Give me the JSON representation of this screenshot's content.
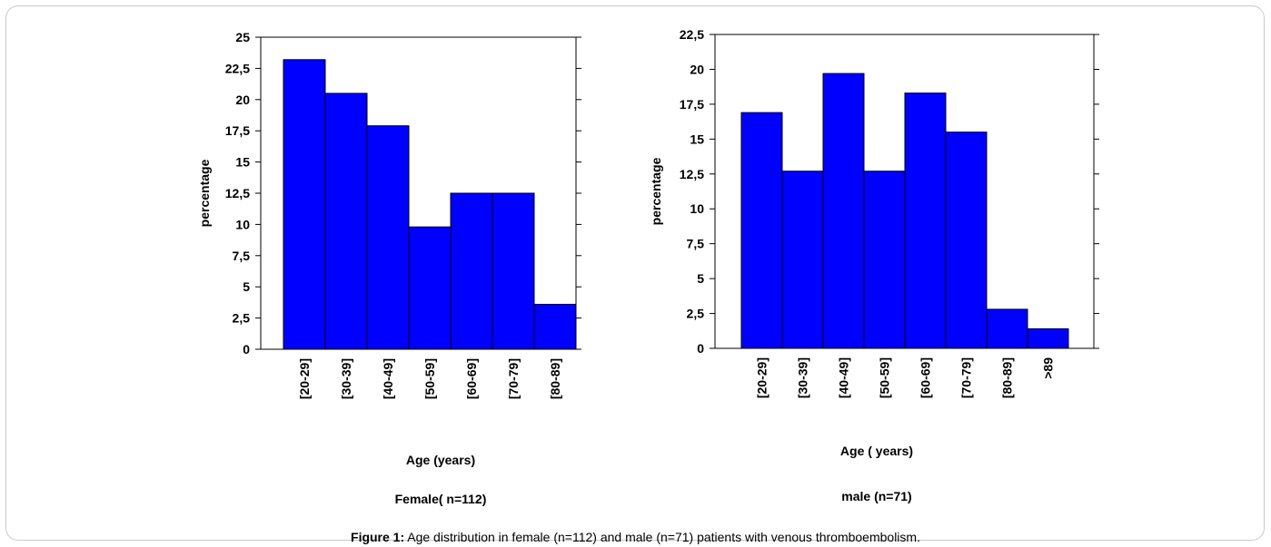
{
  "chart_data": [
    {
      "type": "bar",
      "categories": [
        "[20-29]",
        "[30-39]",
        "[40-49]",
        "[50-59]",
        "[60-69]",
        "[70-79]",
        "[80-89]"
      ],
      "values": [
        23.2,
        20.5,
        17.9,
        9.8,
        12.5,
        12.5,
        3.6
      ],
      "ylabel": "percentage",
      "xlabel": "Age (years)",
      "subtitle": "Female( n=112)",
      "ylim": [
        0,
        25
      ],
      "yticks": [
        "0",
        "2,5",
        "5",
        "7,5",
        "10",
        "12,5",
        "15",
        "17,5",
        "20",
        "22,5",
        "25"
      ],
      "bar_color": "#0000ff"
    },
    {
      "type": "bar",
      "categories": [
        "[20-29]",
        "[30-39]",
        "[40-49]",
        "[50-59]",
        "[60-69]",
        "[70-79]",
        "[80-89]",
        ">89"
      ],
      "values": [
        16.9,
        12.7,
        19.7,
        12.7,
        18.3,
        15.5,
        2.8,
        1.4
      ],
      "ylabel": "percentage",
      "xlabel": "Age ( years)",
      "subtitle": "male (n=71)",
      "ylim": [
        0,
        22.5
      ],
      "yticks": [
        "0",
        "2,5",
        "5",
        "7,5",
        "10",
        "12,5",
        "15",
        "17,5",
        "20",
        "22,5"
      ],
      "bar_color": "#0000ff"
    }
  ],
  "caption": {
    "label": "Figure 1:",
    "text": " Age distribution in female (n=112) and male (n=71) patients with venous thromboembolism."
  }
}
